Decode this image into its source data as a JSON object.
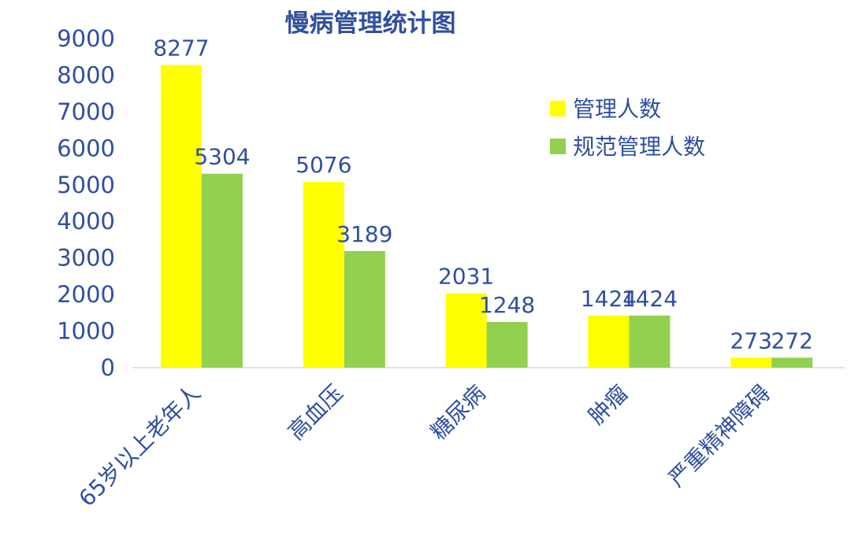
{
  "chart_data": {
    "type": "bar",
    "title": "慢病管理统计图",
    "categories": [
      "65岁以上老年人",
      "高血压",
      "糖尿病",
      "肿瘤",
      "严重精神障碍"
    ],
    "series": [
      {
        "name": "管理人数",
        "values": [
          8277,
          5076,
          2031,
          1424,
          273
        ],
        "color": "#FFFF00"
      },
      {
        "name": "规范管理人数",
        "values": [
          5304,
          3189,
          1248,
          1424,
          272
        ],
        "color": "#92D050"
      }
    ],
    "ylim": [
      0,
      9000
    ],
    "yticks": [
      "0",
      "1000",
      "2000",
      "3000",
      "4000",
      "5000",
      "6000",
      "7000",
      "8000",
      "9000"
    ],
    "xlabel": "",
    "ylabel": "",
    "grid": false,
    "legend_position": "top-right",
    "text_color": "#2F4F9F",
    "axis_color": "#D9D9D9"
  }
}
